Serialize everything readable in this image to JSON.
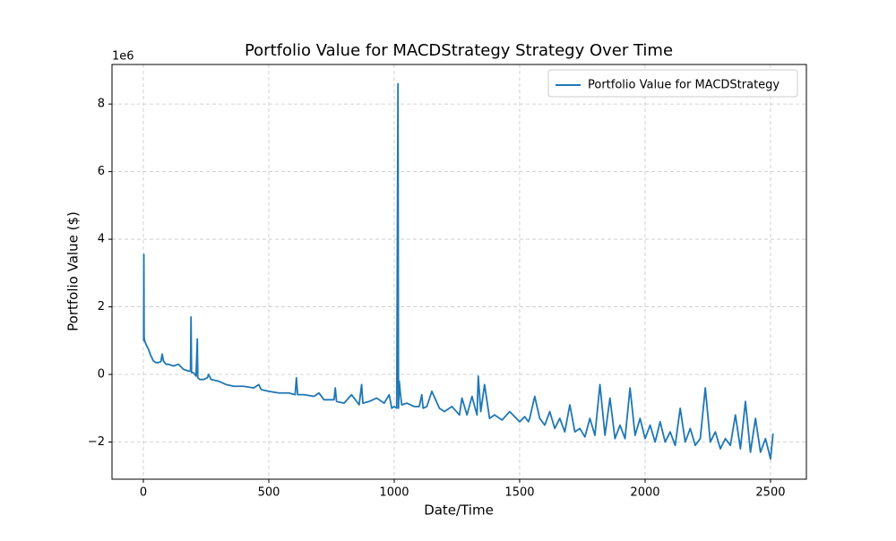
{
  "chart_data": {
    "type": "line",
    "title": "Portfolio Value for MACDStrategy Strategy Over Time",
    "x_label": "Date/Time",
    "y_label": "Portfolio Value ($)",
    "y_offset_label": "1e6",
    "xlim": [
      -125,
      2643
    ],
    "ylim": [
      -3.1,
      9.17
    ],
    "xticks": [
      0,
      500,
      1000,
      1500,
      2000,
      2500
    ],
    "yticks": [
      {
        "value": -2,
        "label": "−2"
      },
      0,
      2,
      4,
      6,
      8
    ],
    "grid": true,
    "legend": "upper right",
    "x": [
      0,
      1,
      2,
      3,
      5,
      10,
      20,
      30,
      40,
      50,
      60,
      70,
      75,
      80,
      90,
      100,
      120,
      140,
      160,
      180,
      188,
      190,
      192,
      200,
      210,
      215,
      217,
      225,
      240,
      255,
      260,
      270,
      300,
      330,
      360,
      400,
      440,
      460,
      470,
      500,
      540,
      580,
      605,
      610,
      615,
      640,
      680,
      700,
      720,
      760,
      765,
      770,
      800,
      830,
      860,
      870,
      875,
      900,
      930,
      960,
      980,
      990,
      1000,
      1010,
      1015,
      1017,
      1020,
      1025,
      1030,
      1050,
      1080,
      1100,
      1110,
      1115,
      1130,
      1150,
      1180,
      1200,
      1230,
      1260,
      1270,
      1290,
      1310,
      1330,
      1335,
      1345,
      1360,
      1380,
      1400,
      1430,
      1460,
      1500,
      1520,
      1535,
      1540,
      1560,
      1580,
      1600,
      1620,
      1640,
      1660,
      1680,
      1700,
      1720,
      1740,
      1760,
      1780,
      1800,
      1820,
      1840,
      1860,
      1880,
      1900,
      1920,
      1940,
      1960,
      1980,
      2000,
      2020,
      2040,
      2060,
      2080,
      2100,
      2120,
      2140,
      2160,
      2180,
      2200,
      2220,
      2240,
      2260,
      2280,
      2300,
      2320,
      2340,
      2360,
      2380,
      2400,
      2420,
      2440,
      2460,
      2480,
      2500,
      2510
    ],
    "series": [
      {
        "name": "Portfolio Value for MACDStrategy",
        "color": "#1f77b4",
        "values": [
          1.0,
          1.0,
          3.55,
          1.1,
          1.0,
          0.9,
          0.75,
          0.55,
          0.4,
          0.35,
          0.35,
          0.38,
          0.6,
          0.4,
          0.3,
          0.3,
          0.25,
          0.3,
          0.15,
          0.1,
          0.1,
          1.7,
          0.05,
          0.05,
          -0.05,
          1.05,
          -0.1,
          -0.15,
          -0.15,
          -0.1,
          0.0,
          -0.15,
          -0.2,
          -0.3,
          -0.35,
          -0.35,
          -0.4,
          -0.3,
          -0.45,
          -0.5,
          -0.55,
          -0.55,
          -0.6,
          -0.1,
          -0.6,
          -0.6,
          -0.65,
          -0.55,
          -0.75,
          -0.75,
          -0.4,
          -0.8,
          -0.85,
          -0.6,
          -0.9,
          -0.3,
          -0.85,
          -0.8,
          -0.7,
          -0.85,
          -0.6,
          -1.0,
          -0.95,
          -1.0,
          8.6,
          -1.0,
          -0.2,
          -0.6,
          -0.9,
          -0.85,
          -0.95,
          -0.95,
          -0.6,
          -1.0,
          -0.95,
          -0.5,
          -1.0,
          -1.1,
          -0.95,
          -1.2,
          -0.7,
          -1.2,
          -0.65,
          -1.2,
          -0.05,
          -1.1,
          -0.3,
          -1.3,
          -1.2,
          -1.35,
          -1.1,
          -1.4,
          -1.25,
          -1.4,
          -1.3,
          -0.65,
          -1.3,
          -1.5,
          -1.1,
          -1.6,
          -1.3,
          -1.7,
          -0.9,
          -1.7,
          -1.6,
          -1.85,
          -1.3,
          -1.8,
          -0.3,
          -1.8,
          -0.7,
          -1.9,
          -1.5,
          -1.9,
          -0.4,
          -1.8,
          -1.3,
          -1.9,
          -1.5,
          -2.0,
          -1.4,
          -2.0,
          -1.7,
          -2.1,
          -1.0,
          -2.0,
          -1.6,
          -2.1,
          -1.9,
          -0.4,
          -2.0,
          -1.7,
          -2.2,
          -1.9,
          -2.1,
          -1.2,
          -2.2,
          -0.8,
          -2.3,
          -1.3,
          -2.3,
          -1.9,
          -2.5,
          -1.75
        ]
      }
    ]
  }
}
